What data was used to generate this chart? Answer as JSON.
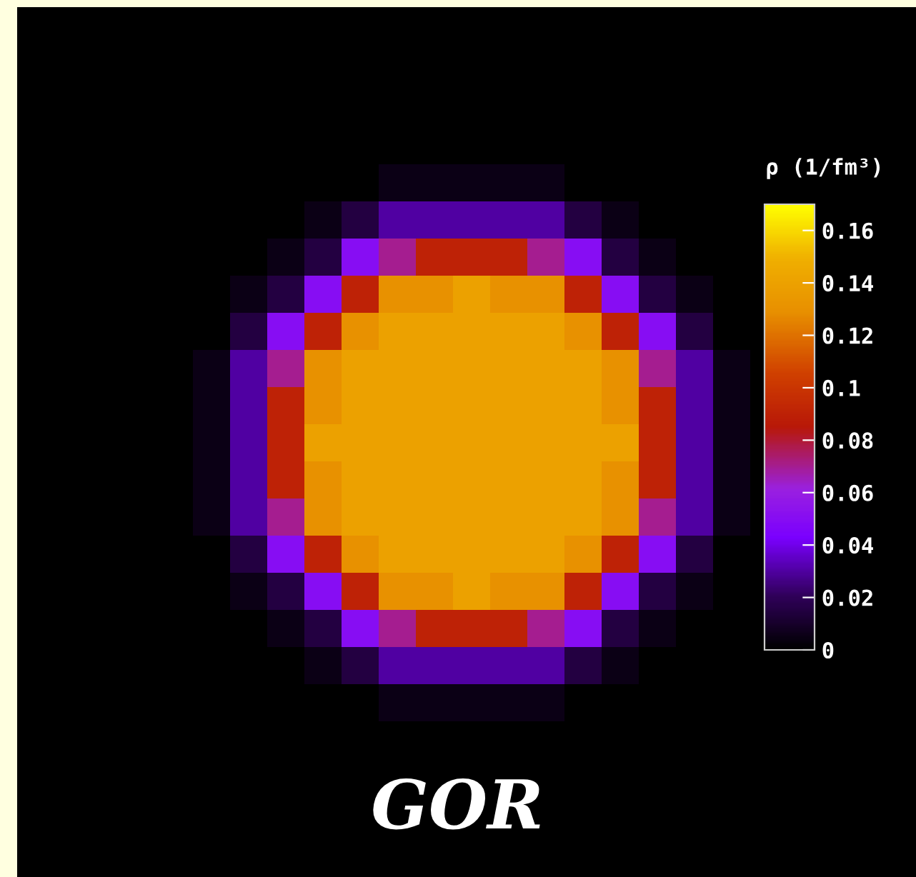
{
  "chart_data": {
    "type": "heatmap",
    "categories": [
      null,
      null,
      null,
      null,
      null,
      null,
      null,
      null,
      null,
      null,
      null,
      null,
      null,
      null,
      null
    ],
    "y_categories": [
      null,
      null,
      null,
      null,
      null,
      null,
      null,
      null,
      null,
      null,
      null,
      null,
      null,
      null,
      null
    ],
    "cells": [
      [
        0,
        0,
        0,
        0,
        0,
        0.005,
        0.005,
        0.005,
        0.005,
        0.005,
        0,
        0,
        0,
        0,
        0
      ],
      [
        0,
        0,
        0,
        0.005,
        0.015,
        0.03,
        0.03,
        0.03,
        0.03,
        0.03,
        0.015,
        0.005,
        0,
        0,
        0
      ],
      [
        0,
        0,
        0.005,
        0.015,
        0.05,
        0.07,
        0.09,
        0.09,
        0.09,
        0.07,
        0.05,
        0.015,
        0.005,
        0,
        0
      ],
      [
        0,
        0.005,
        0.015,
        0.05,
        0.09,
        0.13,
        0.13,
        0.14,
        0.13,
        0.13,
        0.09,
        0.05,
        0.015,
        0.005,
        0
      ],
      [
        0,
        0.015,
        0.05,
        0.09,
        0.13,
        0.14,
        0.14,
        0.14,
        0.14,
        0.14,
        0.13,
        0.09,
        0.05,
        0.015,
        0
      ],
      [
        0.005,
        0.03,
        0.07,
        0.13,
        0.14,
        0.14,
        0.14,
        0.14,
        0.14,
        0.14,
        0.14,
        0.13,
        0.07,
        0.03,
        0.005
      ],
      [
        0.005,
        0.03,
        0.09,
        0.13,
        0.14,
        0.14,
        0.14,
        0.14,
        0.14,
        0.14,
        0.14,
        0.13,
        0.09,
        0.03,
        0.005
      ],
      [
        0.005,
        0.03,
        0.09,
        0.14,
        0.14,
        0.14,
        0.14,
        0.14,
        0.14,
        0.14,
        0.14,
        0.14,
        0.09,
        0.03,
        0.005
      ],
      [
        0.005,
        0.03,
        0.09,
        0.13,
        0.14,
        0.14,
        0.14,
        0.14,
        0.14,
        0.14,
        0.14,
        0.13,
        0.09,
        0.03,
        0.005
      ],
      [
        0.005,
        0.03,
        0.07,
        0.13,
        0.14,
        0.14,
        0.14,
        0.14,
        0.14,
        0.14,
        0.14,
        0.13,
        0.07,
        0.03,
        0.005
      ],
      [
        0,
        0.015,
        0.05,
        0.09,
        0.13,
        0.14,
        0.14,
        0.14,
        0.14,
        0.14,
        0.13,
        0.09,
        0.05,
        0.015,
        0
      ],
      [
        0,
        0.005,
        0.015,
        0.05,
        0.09,
        0.13,
        0.13,
        0.14,
        0.13,
        0.13,
        0.09,
        0.05,
        0.015,
        0.005,
        0
      ],
      [
        0,
        0,
        0.005,
        0.015,
        0.05,
        0.07,
        0.09,
        0.09,
        0.09,
        0.07,
        0.05,
        0.015,
        0.005,
        0,
        0
      ],
      [
        0,
        0,
        0,
        0.005,
        0.015,
        0.03,
        0.03,
        0.03,
        0.03,
        0.03,
        0.015,
        0.005,
        0,
        0,
        0
      ],
      [
        0,
        0,
        0,
        0,
        0,
        0.005,
        0.005,
        0.005,
        0.005,
        0.005,
        0,
        0,
        0,
        0,
        0
      ]
    ],
    "clim": [
      0,
      0.17
    ],
    "cticks": [
      0,
      0.02,
      0.04,
      0.06,
      0.08,
      0.1,
      0.12,
      0.14,
      0.16
    ],
    "clabel": "ρ (1/fm³)",
    "annotations": [
      "GOR"
    ]
  }
}
